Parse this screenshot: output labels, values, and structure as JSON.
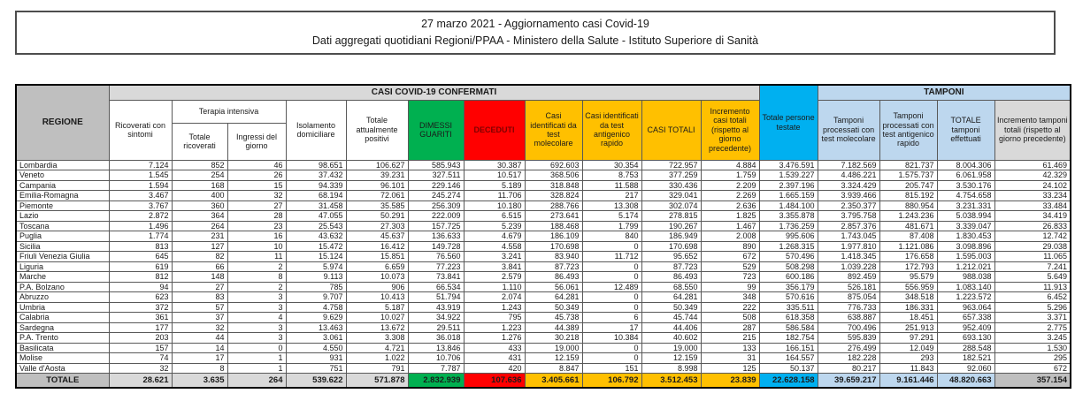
{
  "title": {
    "line1": "27 marzo 2021 - Aggiornamento casi Covid-19",
    "line2": "Dati aggregati quotidiani Regioni/PPAA - Ministero della Salute - Istituto Superiore di Sanità"
  },
  "colors": {
    "green": "#00B050",
    "red": "#FF0000",
    "yellow": "#FFC000",
    "cyan": "#00B0F0",
    "light_blue": "#BDD7EE",
    "gray_dark": "#BFBFBF",
    "gray_light": "#D9D9D9",
    "deceduti_text": "#7F0000"
  },
  "table": {
    "region_header": "REGIONE",
    "group_casi": "CASI COVID-19 CONFERMATI",
    "group_terapia": "Terapia intensiva",
    "group_tamponi": "TAMPONI",
    "columns": [
      "Ricoverati con sintomi",
      "Totale ricoverati",
      "Ingressi del giorno",
      "Isolamento domiciliare",
      "Totale attualmente positivi",
      "DIMESSI GUARITI",
      "DECEDUTI",
      "Casi identificati da test molecolare",
      "Casi identificati da test antigenico rapido",
      "CASI TOTALI",
      "Incremento casi totali (rispetto al giorno precedente)",
      "Totale persone testate",
      "Tamponi processati con test molecolare",
      "Tamponi processati con test antigenico rapido",
      "TOTALE tamponi effettuati",
      "Incremento tamponi totali (rispetto al giorno precedente)"
    ],
    "rows": [
      {
        "region": "Lombardia",
        "values": [
          "7.124",
          "852",
          "46",
          "98.651",
          "106.627",
          "585.943",
          "30.387",
          "692.603",
          "30.354",
          "722.957",
          "4.884",
          "3.476.591",
          "7.182.569",
          "821.737",
          "8.004.306",
          "61.469"
        ]
      },
      {
        "region": "Veneto",
        "values": [
          "1.545",
          "254",
          "26",
          "37.432",
          "39.231",
          "327.511",
          "10.517",
          "368.506",
          "8.753",
          "377.259",
          "1.759",
          "1.539.227",
          "4.486.221",
          "1.575.737",
          "6.061.958",
          "42.329"
        ]
      },
      {
        "region": "Campania",
        "values": [
          "1.594",
          "168",
          "15",
          "94.339",
          "96.101",
          "229.146",
          "5.189",
          "318.848",
          "11.588",
          "330.436",
          "2.209",
          "2.397.196",
          "3.324.429",
          "205.747",
          "3.530.176",
          "24.102"
        ]
      },
      {
        "region": "Emilia-Romagna",
        "values": [
          "3.467",
          "400",
          "32",
          "68.194",
          "72.061",
          "245.274",
          "11.706",
          "328.824",
          "217",
          "329.041",
          "2.269",
          "1.665.159",
          "3.939.466",
          "815.192",
          "4.754.658",
          "33.234"
        ]
      },
      {
        "region": "Piemonte",
        "values": [
          "3.767",
          "360",
          "27",
          "31.458",
          "35.585",
          "256.309",
          "10.180",
          "288.766",
          "13.308",
          "302.074",
          "2.636",
          "1.484.100",
          "2.350.377",
          "880.954",
          "3.231.331",
          "33.484"
        ]
      },
      {
        "region": "Lazio",
        "values": [
          "2.872",
          "364",
          "28",
          "47.055",
          "50.291",
          "222.009",
          "6.515",
          "273.641",
          "5.174",
          "278.815",
          "1.825",
          "3.355.878",
          "3.795.758",
          "1.243.236",
          "5.038.994",
          "34.419"
        ]
      },
      {
        "region": "Toscana",
        "values": [
          "1.496",
          "264",
          "23",
          "25.543",
          "27.303",
          "157.725",
          "5.239",
          "188.468",
          "1.799",
          "190.267",
          "1.467",
          "1.736.259",
          "2.857.376",
          "481.671",
          "3.339.047",
          "26.833"
        ]
      },
      {
        "region": "Puglia",
        "values": [
          "1.774",
          "231",
          "16",
          "43.632",
          "45.637",
          "136.633",
          "4.679",
          "186.109",
          "840",
          "186.949",
          "2.008",
          "995.606",
          "1.743.045",
          "87.408",
          "1.830.453",
          "12.742"
        ]
      },
      {
        "region": "Sicilia",
        "values": [
          "813",
          "127",
          "10",
          "15.472",
          "16.412",
          "149.728",
          "4.558",
          "170.698",
          "0",
          "170.698",
          "890",
          "1.268.315",
          "1.977.810",
          "1.121.086",
          "3.098.896",
          "29.038"
        ]
      },
      {
        "region": "Friuli Venezia Giulia",
        "values": [
          "645",
          "82",
          "11",
          "15.124",
          "15.851",
          "76.560",
          "3.241",
          "83.940",
          "11.712",
          "95.652",
          "672",
          "570.496",
          "1.418.345",
          "176.658",
          "1.595.003",
          "11.065"
        ]
      },
      {
        "region": "Liguria",
        "values": [
          "619",
          "66",
          "2",
          "5.974",
          "6.659",
          "77.223",
          "3.841",
          "87.723",
          "0",
          "87.723",
          "529",
          "508.298",
          "1.039.228",
          "172.793",
          "1.212.021",
          "7.241"
        ]
      },
      {
        "region": "Marche",
        "values": [
          "812",
          "148",
          "8",
          "9.113",
          "10.073",
          "73.841",
          "2.579",
          "86.493",
          "0",
          "86.493",
          "723",
          "600.186",
          "892.459",
          "95.579",
          "988.038",
          "5.649"
        ]
      },
      {
        "region": "P.A. Bolzano",
        "values": [
          "94",
          "27",
          "2",
          "785",
          "906",
          "66.534",
          "1.110",
          "56.061",
          "12.489",
          "68.550",
          "99",
          "356.179",
          "526.181",
          "556.959",
          "1.083.140",
          "11.913"
        ]
      },
      {
        "region": "Abruzzo",
        "values": [
          "623",
          "83",
          "3",
          "9.707",
          "10.413",
          "51.794",
          "2.074",
          "64.281",
          "0",
          "64.281",
          "348",
          "570.616",
          "875.054",
          "348.518",
          "1.223.572",
          "6.452"
        ]
      },
      {
        "region": "Umbria",
        "values": [
          "372",
          "57",
          "3",
          "4.758",
          "5.187",
          "43.919",
          "1.243",
          "50.349",
          "0",
          "50.349",
          "222",
          "335.511",
          "776.733",
          "186.331",
          "963.064",
          "5.296"
        ]
      },
      {
        "region": "Calabria",
        "values": [
          "361",
          "37",
          "4",
          "9.629",
          "10.027",
          "34.922",
          "795",
          "45.738",
          "6",
          "45.744",
          "508",
          "618.358",
          "638.887",
          "18.451",
          "657.338",
          "3.371"
        ]
      },
      {
        "region": "Sardegna",
        "values": [
          "177",
          "32",
          "3",
          "13.463",
          "13.672",
          "29.511",
          "1.223",
          "44.389",
          "17",
          "44.406",
          "287",
          "586.584",
          "700.496",
          "251.913",
          "952.409",
          "2.775"
        ]
      },
      {
        "region": "P.A. Trento",
        "values": [
          "203",
          "44",
          "3",
          "3.061",
          "3.308",
          "36.018",
          "1.276",
          "30.218",
          "10.384",
          "40.602",
          "215",
          "182.754",
          "595.839",
          "97.291",
          "693.130",
          "3.245"
        ]
      },
      {
        "region": "Basilicata",
        "values": [
          "157",
          "14",
          "0",
          "4.550",
          "4.721",
          "13.846",
          "433",
          "19.000",
          "0",
          "19.000",
          "133",
          "166.151",
          "276.499",
          "12.049",
          "288.548",
          "1.530"
        ]
      },
      {
        "region": "Molise",
        "values": [
          "74",
          "17",
          "1",
          "931",
          "1.022",
          "10.706",
          "431",
          "12.159",
          "0",
          "12.159",
          "31",
          "164.557",
          "182.228",
          "293",
          "182.521",
          "295"
        ]
      },
      {
        "region": "Valle d'Aosta",
        "values": [
          "32",
          "8",
          "1",
          "751",
          "791",
          "7.787",
          "420",
          "8.847",
          "151",
          "8.998",
          "125",
          "50.137",
          "80.217",
          "11.843",
          "92.060",
          "672"
        ]
      }
    ],
    "total_row": {
      "region": "TOTALE",
      "values": [
        "28.621",
        "3.635",
        "264",
        "539.622",
        "571.878",
        "2.832.939",
        "107.636",
        "3.405.661",
        "106.792",
        "3.512.453",
        "23.839",
        "22.628.158",
        "39.659.217",
        "9.161.446",
        "48.820.663",
        "357.154"
      ]
    }
  }
}
